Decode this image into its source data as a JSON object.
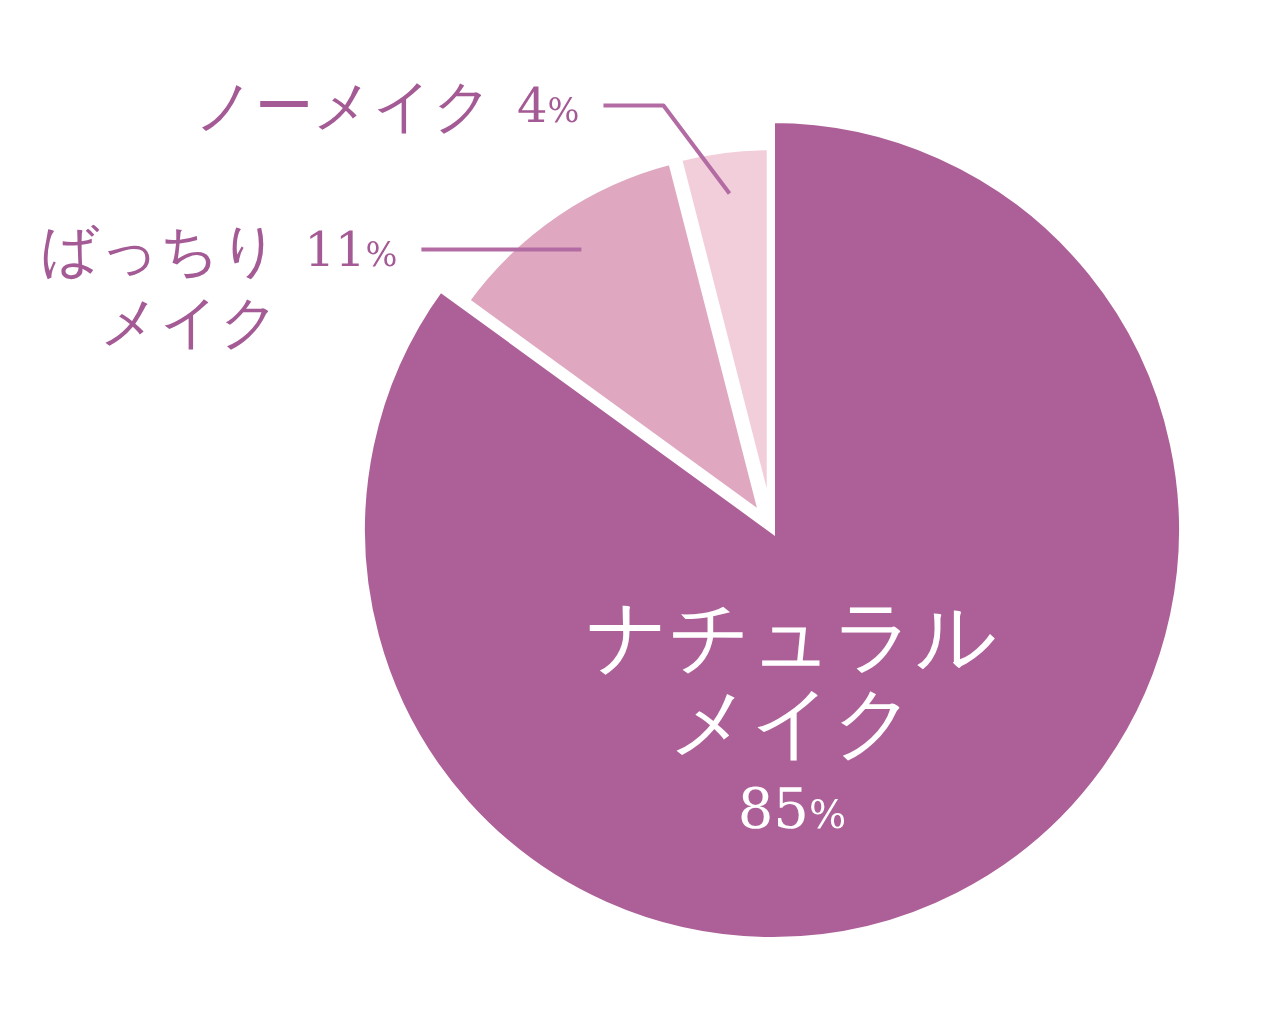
{
  "chart_data": {
    "type": "pie",
    "categories": [
      "ナチュラルメイク",
      "ばっちりメイク",
      "ノーメイク"
    ],
    "values": [
      85,
      11,
      4
    ],
    "colors": [
      "#ad6098",
      "#dfa8c0",
      "#f2cdda"
    ],
    "value_labels": [
      "85%",
      "11%",
      "4%"
    ]
  }
}
